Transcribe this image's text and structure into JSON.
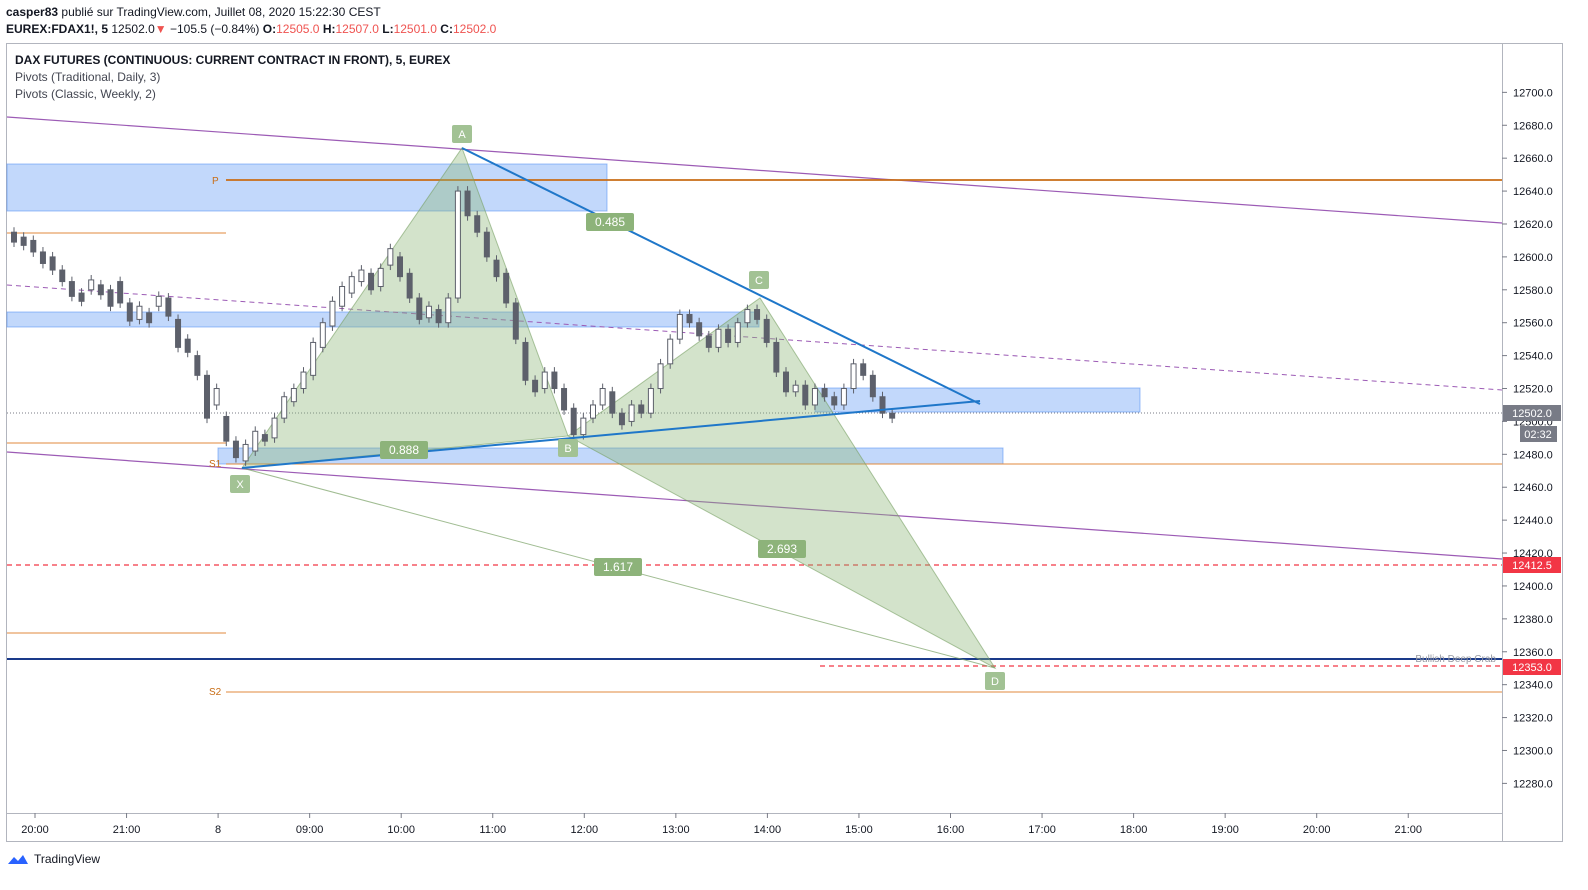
{
  "header": {
    "author": "casper83",
    "published": "publié sur TradingView.com, Juillet 08, 2020 15:22:30 CEST",
    "symbol": "EUREX:FDAX1!, 5",
    "last": "12502.0",
    "change": "−105.5 (−0.84%)",
    "o_label": "O:",
    "o_val": "12505.0",
    "h_label": "H:",
    "h_val": "12507.0",
    "l_label": "L:",
    "l_val": "12501.0",
    "c_label": "C:",
    "c_val": "12502.0"
  },
  "legend": {
    "title": "DAX FUTURES (CONTINUOUS: CURRENT CONTRACT IN FRONT), 5, EUREX",
    "ind1": "Pivots (Traditional, Daily, 3)",
    "ind2": "Pivots (Classic, Weekly, 2)"
  },
  "footer": {
    "brand": "TradingView"
  },
  "chart_data": {
    "type": "candlestick",
    "y_range": [
      12262,
      12730
    ],
    "y_ticks": [
      "12700.0",
      "12680.0",
      "12660.0",
      "12640.0",
      "12620.0",
      "12600.0",
      "12580.0",
      "12560.0",
      "12540.0",
      "12520.0",
      "12500.0",
      "12480.0",
      "12460.0",
      "12440.0",
      "12420.0",
      "12400.0",
      "12380.0",
      "12360.0",
      "12340.0",
      "12320.0",
      "12300.0",
      "12280.0"
    ],
    "x_ticks": [
      "20:00",
      "21:00",
      "8",
      "09:00",
      "10:00",
      "11:00",
      "12:00",
      "13:00",
      "14:00",
      "15:00",
      "16:00",
      "17:00",
      "18:00",
      "19:00",
      "20:00",
      "21:00"
    ],
    "price_labels": [
      {
        "text": "12502.0",
        "color": "#787b86"
      },
      {
        "text": "02:32",
        "color": "#787b86"
      },
      {
        "text": "12412.5",
        "color": "#f23645"
      },
      {
        "text": "12353.0",
        "color": "#f23645"
      }
    ],
    "pivots": [
      {
        "name": "P",
        "value": 12640
      },
      {
        "name": "S1",
        "value": 12473
      },
      {
        "name": "S2",
        "value": 12340
      }
    ],
    "pattern": {
      "name": "Bullish Deep Crab",
      "points": [
        {
          "name": "X",
          "value": 12470
        },
        {
          "name": "A",
          "value": 12660
        },
        {
          "name": "B",
          "value": 12488
        },
        {
          "name": "C",
          "value": 12572
        },
        {
          "name": "D",
          "value": 12353
        }
      ],
      "ratios": [
        "0.485",
        "0.888",
        "2.693",
        "1.617"
      ]
    },
    "candles": [
      [
        12615,
        12609
      ],
      [
        12612,
        12607
      ],
      [
        12610,
        12603
      ],
      [
        12603,
        12596
      ],
      [
        12600,
        12592
      ],
      [
        12592,
        12585
      ],
      [
        12585,
        12576
      ],
      [
        12578,
        12573
      ],
      [
        12580,
        12586
      ],
      [
        12583,
        12577
      ],
      [
        12580,
        12570
      ],
      [
        12585,
        12572
      ],
      [
        12572,
        12561
      ],
      [
        12562,
        12570
      ],
      [
        12566,
        12560
      ],
      [
        12570,
        12576
      ],
      [
        12575,
        12564
      ],
      [
        12562,
        12545
      ],
      [
        12550,
        12542
      ],
      [
        12540,
        12528
      ],
      [
        12528,
        12502
      ],
      [
        12510,
        12520
      ],
      [
        12503,
        12488
      ],
      [
        12488,
        12478
      ],
      [
        12476,
        12486
      ],
      [
        12482,
        12494
      ],
      [
        12492,
        12488
      ],
      [
        12490,
        12502
      ],
      [
        12502,
        12515
      ],
      [
        12512,
        12520
      ],
      [
        12520,
        12530
      ],
      [
        12528,
        12548
      ],
      [
        12545,
        12560
      ],
      [
        12558,
        12573
      ],
      [
        12570,
        12582
      ],
      [
        12578,
        12588
      ],
      [
        12585,
        12592
      ],
      [
        12590,
        12580
      ],
      [
        12582,
        12593
      ],
      [
        12595,
        12605
      ],
      [
        12600,
        12588
      ],
      [
        12590,
        12575
      ],
      [
        12575,
        12562
      ],
      [
        12563,
        12570
      ],
      [
        12568,
        12560
      ],
      [
        12560,
        12575
      ],
      [
        12575,
        12640
      ],
      [
        12640,
        12625
      ],
      [
        12625,
        12615
      ],
      [
        12615,
        12600
      ],
      [
        12598,
        12588
      ],
      [
        12590,
        12572
      ],
      [
        12572,
        12550
      ],
      [
        12548,
        12525
      ],
      [
        12525,
        12518
      ],
      [
        12520,
        12530
      ],
      [
        12530,
        12520
      ],
      [
        12520,
        12507
      ],
      [
        12508,
        12492
      ],
      [
        12492,
        12502
      ],
      [
        12502,
        12510
      ],
      [
        12510,
        12520
      ],
      [
        12518,
        12505
      ],
      [
        12505,
        12498
      ],
      [
        12500,
        12510
      ],
      [
        12510,
        12505
      ],
      [
        12505,
        12520
      ],
      [
        12520,
        12535
      ],
      [
        12535,
        12550
      ],
      [
        12550,
        12565
      ],
      [
        12565,
        12560
      ],
      [
        12560,
        12552
      ],
      [
        12552,
        12545
      ],
      [
        12545,
        12556
      ],
      [
        12556,
        12548
      ],
      [
        12548,
        12560
      ],
      [
        12560,
        12568
      ],
      [
        12568,
        12562
      ],
      [
        12562,
        12548
      ],
      [
        12548,
        12530
      ],
      [
        12530,
        12518
      ],
      [
        12518,
        12522
      ],
      [
        12522,
        12510
      ],
      [
        12510,
        12520
      ],
      [
        12520,
        12515
      ],
      [
        12515,
        12510
      ],
      [
        12510,
        12520
      ],
      [
        12520,
        12535
      ],
      [
        12535,
        12528
      ],
      [
        12528,
        12515
      ],
      [
        12515,
        12505
      ],
      [
        12505,
        12502
      ]
    ]
  }
}
